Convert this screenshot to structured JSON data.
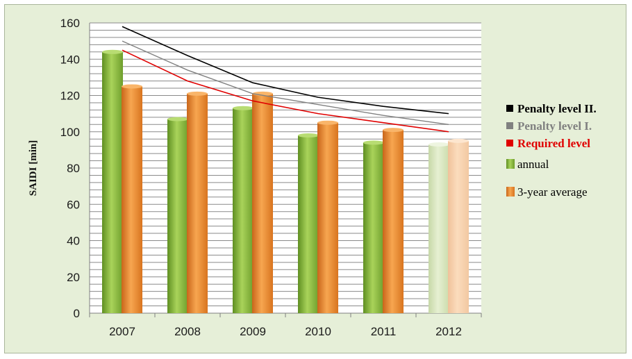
{
  "chart_data": {
    "type": "bar",
    "categories": [
      "2007",
      "2008",
      "2009",
      "2010",
      "2011",
      "2012"
    ],
    "ylabel": "SAIDI  [min]",
    "ylim": [
      0,
      160
    ],
    "yticks": [
      0,
      20,
      40,
      60,
      80,
      100,
      120,
      140,
      160
    ],
    "grid": true,
    "legend_position": "right",
    "series": [
      {
        "name": "annual",
        "kind": "bar",
        "color": "#7fae3a",
        "values": [
          144,
          107,
          113,
          98,
          94,
          93
        ]
      },
      {
        "name": "3-year average",
        "kind": "bar",
        "color": "#ee8a2a",
        "values": [
          125,
          121,
          121,
          105,
          101,
          95
        ]
      },
      {
        "name": "Penalty level II.",
        "kind": "line",
        "color": "#000000",
        "values": [
          158,
          142,
          127,
          119,
          114,
          110
        ]
      },
      {
        "name": "Penalty level I.",
        "kind": "line",
        "color": "#808080",
        "values": [
          150,
          134,
          121,
          115,
          109,
          104
        ]
      },
      {
        "name": "Required level",
        "kind": "line",
        "color": "#e00000",
        "values": [
          145,
          128,
          117,
          110,
          105,
          100
        ]
      }
    ],
    "faded_category": "2012"
  }
}
